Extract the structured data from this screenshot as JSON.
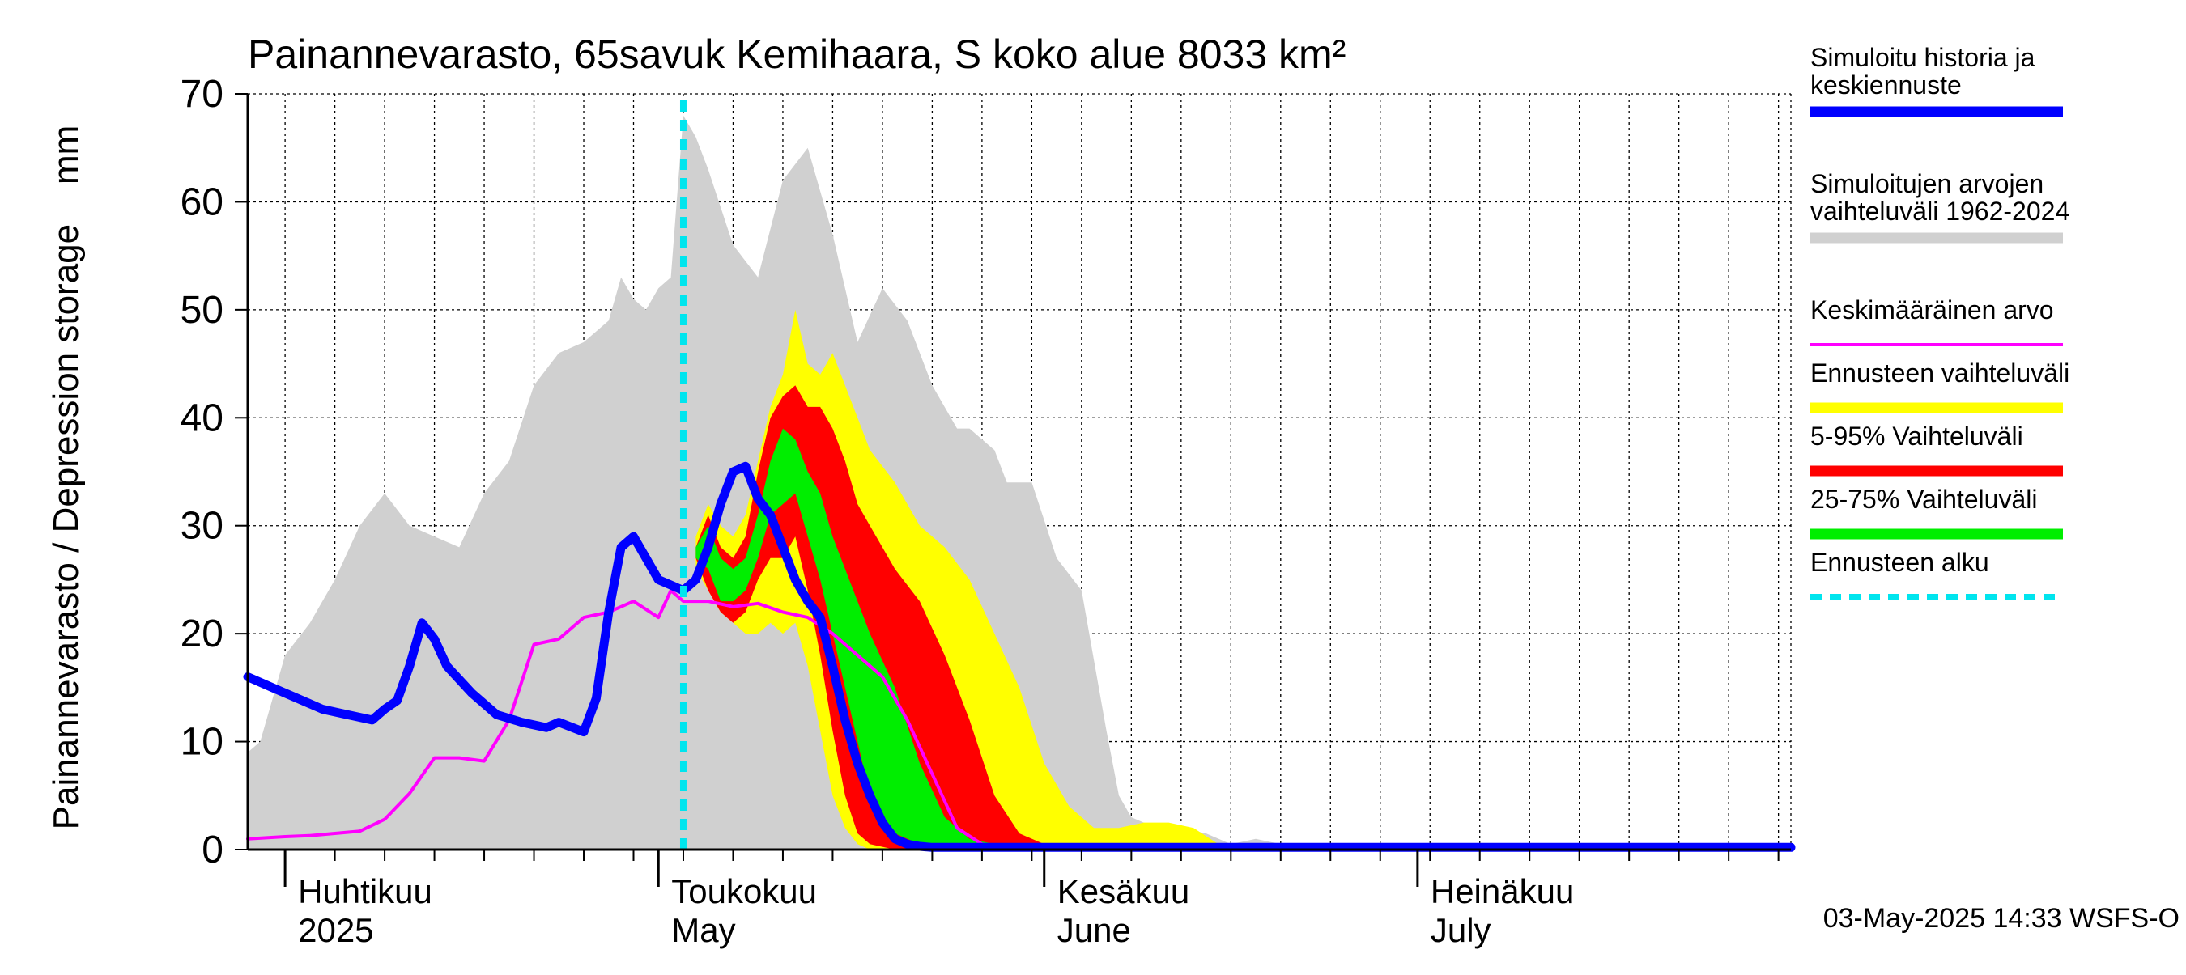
{
  "chart_data": {
    "type": "area",
    "title": "Painannevarasto, 65savuk Kemihaara, S koko alue 8033 km²",
    "ylabel": "Painannevarasto / Depression storage    mm",
    "ylim": [
      0,
      70
    ],
    "yticks": [
      "0",
      "10",
      "20",
      "30",
      "40",
      "50",
      "60",
      "70"
    ],
    "xlim": [
      "2025-03-29",
      "2025-07-31"
    ],
    "x_month_labels": [
      {
        "date": "2025-04-01",
        "fi": "Huhtikuu",
        "en": "2025"
      },
      {
        "date": "2025-05-01",
        "fi": "Toukokuu",
        "en": "May"
      },
      {
        "date": "2025-06-01",
        "fi": "Kesäkuu",
        "en": "June"
      },
      {
        "date": "2025-07-01",
        "fi": "Heinäkuu",
        "en": "July"
      }
    ],
    "forecast_start": "2025-05-03",
    "grid": true,
    "legend_position": "right",
    "timestamp": "03-May-2025 14:33 WSFS-O",
    "series": [
      {
        "name": "Simuloitujen arvojen vaihteluväli 1962-2024",
        "kind": "band",
        "color": "#d0d0d0",
        "x": [
          "2025-03-29",
          "2025-03-30",
          "2025-04-01",
          "2025-04-03",
          "2025-04-05",
          "2025-04-07",
          "2025-04-09",
          "2025-04-11",
          "2025-04-13",
          "2025-04-15",
          "2025-04-17",
          "2025-04-19",
          "2025-04-21",
          "2025-04-23",
          "2025-04-25",
          "2025-04-27",
          "2025-04-28",
          "2025-04-29",
          "2025-04-30",
          "2025-05-01",
          "2025-05-02",
          "2025-05-03",
          "2025-05-04",
          "2025-05-05",
          "2025-05-07",
          "2025-05-09",
          "2025-05-11",
          "2025-05-13",
          "2025-05-15",
          "2025-05-17",
          "2025-05-19",
          "2025-05-21",
          "2025-05-23",
          "2025-05-25",
          "2025-05-26",
          "2025-05-27",
          "2025-05-28",
          "2025-05-29",
          "2025-05-31",
          "2025-06-02",
          "2025-06-04",
          "2025-06-06",
          "2025-06-07",
          "2025-06-08",
          "2025-06-10",
          "2025-06-12",
          "2025-06-14",
          "2025-06-16",
          "2025-06-18",
          "2025-06-20",
          "2025-06-22",
          "2025-06-24",
          "2025-07-31"
        ],
        "high": [
          9,
          10,
          18,
          21,
          25,
          30,
          33,
          30,
          29,
          28,
          33,
          36,
          43,
          46,
          47,
          49,
          53,
          51,
          50,
          52,
          53,
          68,
          66,
          63,
          56,
          53,
          62,
          65,
          57,
          47,
          52,
          49,
          43,
          39,
          39,
          38,
          37,
          34,
          34,
          27,
          24,
          11,
          5,
          3,
          2,
          2,
          1.5,
          0.5,
          1,
          0.5,
          0.4,
          0.3,
          0.2
        ],
        "low": [
          0,
          0,
          0,
          0,
          0,
          0,
          0,
          0,
          0,
          0,
          0,
          0,
          0,
          0,
          0,
          0,
          0,
          0,
          0,
          0,
          0,
          0,
          0,
          0,
          0,
          0,
          0,
          0,
          0,
          0,
          0,
          0,
          0,
          0,
          0,
          0,
          0,
          0,
          0,
          0,
          0,
          0,
          0,
          0,
          0,
          0,
          0,
          0,
          0,
          0,
          0,
          0,
          0
        ]
      },
      {
        "name": "Ennusteen vaihteluväli",
        "kind": "band",
        "color": "#ffff00",
        "x": [
          "2025-05-04",
          "2025-05-05",
          "2025-05-06",
          "2025-05-07",
          "2025-05-08",
          "2025-05-09",
          "2025-05-10",
          "2025-05-11",
          "2025-05-12",
          "2025-05-13",
          "2025-05-14",
          "2025-05-15",
          "2025-05-16",
          "2025-05-17",
          "2025-05-18",
          "2025-05-20",
          "2025-05-22",
          "2025-05-24",
          "2025-05-26",
          "2025-05-28",
          "2025-05-30",
          "2025-06-01",
          "2025-06-03",
          "2025-06-05",
          "2025-06-07",
          "2025-06-09",
          "2025-06-11",
          "2025-06-13",
          "2025-06-15",
          "2025-07-31"
        ],
        "high": [
          29,
          32,
          30,
          29,
          31,
          36,
          41,
          44,
          50,
          45,
          44,
          46,
          43,
          40,
          37,
          34,
          30,
          28,
          25,
          20,
          15,
          8,
          4,
          2,
          2,
          2.5,
          2.5,
          2,
          0.5,
          0.2
        ],
        "low": [
          26,
          24,
          22,
          21,
          20,
          20,
          21,
          20,
          21,
          17,
          11,
          5,
          2,
          0.5,
          0,
          0,
          0,
          0,
          0,
          0,
          0,
          0,
          0,
          0,
          0,
          0,
          0,
          0,
          0,
          0
        ]
      },
      {
        "name": "5-95% Vaihteluväli",
        "kind": "band",
        "color": "#ff0000",
        "x": [
          "2025-05-04",
          "2025-05-05",
          "2025-05-06",
          "2025-05-07",
          "2025-05-08",
          "2025-05-09",
          "2025-05-10",
          "2025-05-11",
          "2025-05-12",
          "2025-05-13",
          "2025-05-14",
          "2025-05-15",
          "2025-05-16",
          "2025-05-17",
          "2025-05-18",
          "2025-05-20",
          "2025-05-22",
          "2025-05-24",
          "2025-05-26",
          "2025-05-28",
          "2025-05-30",
          "2025-06-01",
          "2025-06-03",
          "2025-06-05",
          "2025-06-07",
          "2025-07-31"
        ],
        "high": [
          28,
          31,
          28,
          27,
          29,
          35,
          40,
          42,
          43,
          41,
          41,
          39,
          36,
          32,
          30,
          26,
          23,
          18,
          12,
          5,
          1.5,
          0.5,
          0.3,
          0.2,
          0.2,
          0.2
        ],
        "low": [
          27,
          24,
          22,
          21,
          22,
          25,
          27,
          27,
          29,
          24,
          18,
          11,
          5,
          1.5,
          0.5,
          0,
          0,
          0,
          0,
          0,
          0,
          0,
          0,
          0,
          0,
          0
        ]
      },
      {
        "name": "25-75% Vaihteluväli",
        "kind": "band",
        "color": "#00ee00",
        "x": [
          "2025-05-04",
          "2025-05-05",
          "2025-05-06",
          "2025-05-07",
          "2025-05-08",
          "2025-05-09",
          "2025-05-10",
          "2025-05-11",
          "2025-05-12",
          "2025-05-13",
          "2025-05-14",
          "2025-05-15",
          "2025-05-16",
          "2025-05-17",
          "2025-05-18",
          "2025-05-20",
          "2025-05-22",
          "2025-05-24",
          "2025-05-26",
          "2025-05-28",
          "2025-05-30",
          "2025-07-31"
        ],
        "high": [
          28,
          30,
          27,
          26,
          27,
          31,
          36,
          39,
          38,
          35,
          33,
          29,
          26,
          23,
          20,
          15,
          8,
          3,
          1,
          0.5,
          0.3,
          0.2
        ],
        "low": [
          27,
          26,
          23,
          23,
          24,
          27,
          31,
          32,
          33,
          29,
          25,
          20,
          15,
          10,
          5,
          1.5,
          0.5,
          0.2,
          0,
          0,
          0,
          0
        ]
      },
      {
        "name": "Keskimääräinen arvo",
        "kind": "line",
        "color": "#ff00ff",
        "x": [
          "2025-03-29",
          "2025-04-01",
          "2025-04-03",
          "2025-04-05",
          "2025-04-07",
          "2025-04-09",
          "2025-04-11",
          "2025-04-13",
          "2025-04-15",
          "2025-04-17",
          "2025-04-19",
          "2025-04-21",
          "2025-04-23",
          "2025-04-25",
          "2025-04-27",
          "2025-04-29",
          "2025-05-01",
          "2025-05-02",
          "2025-05-03",
          "2025-05-05",
          "2025-05-07",
          "2025-05-09",
          "2025-05-11",
          "2025-05-13",
          "2025-05-15",
          "2025-05-17",
          "2025-05-19",
          "2025-05-21",
          "2025-05-23",
          "2025-05-25",
          "2025-05-27",
          "2025-05-29",
          "2025-05-31",
          "2025-07-31"
        ],
        "values": [
          1,
          1.2,
          1.3,
          1.5,
          1.7,
          2.8,
          5.2,
          8.5,
          8.5,
          8.2,
          12,
          19,
          19.5,
          21.5,
          22,
          23,
          21.5,
          24,
          23,
          23,
          22.5,
          22.8,
          22,
          21.5,
          20,
          18,
          16,
          12,
          7,
          2,
          0.5,
          0.2,
          0.1,
          0.1
        ]
      },
      {
        "name": "Simuloitu historia ja keskiennuste",
        "kind": "line",
        "color": "#0000ff",
        "x": [
          "2025-03-29",
          "2025-03-31",
          "2025-04-02",
          "2025-04-04",
          "2025-04-06",
          "2025-04-08",
          "2025-04-09",
          "2025-04-10",
          "2025-04-11",
          "2025-04-12",
          "2025-04-13",
          "2025-04-14",
          "2025-04-16",
          "2025-04-18",
          "2025-04-20",
          "2025-04-22",
          "2025-04-23",
          "2025-04-25",
          "2025-04-26",
          "2025-04-27",
          "2025-04-28",
          "2025-04-29",
          "2025-04-30",
          "2025-05-01",
          "2025-05-02",
          "2025-05-03",
          "2025-05-04",
          "2025-05-05",
          "2025-05-06",
          "2025-05-07",
          "2025-05-08",
          "2025-05-09",
          "2025-05-10",
          "2025-05-11",
          "2025-05-12",
          "2025-05-13",
          "2025-05-14",
          "2025-05-15",
          "2025-05-16",
          "2025-05-17",
          "2025-05-18",
          "2025-05-19",
          "2025-05-20",
          "2025-05-21",
          "2025-05-22",
          "2025-05-23",
          "2025-05-24",
          "2025-05-25",
          "2025-05-27",
          "2025-05-29",
          "2025-05-31",
          "2025-07-31"
        ],
        "values": [
          16,
          15,
          14,
          13,
          12.5,
          12,
          13,
          13.8,
          17,
          21,
          19.5,
          17,
          14.5,
          12.5,
          11.8,
          11.3,
          11.8,
          10.9,
          14,
          22,
          28,
          29,
          27,
          25,
          24.5,
          24,
          25,
          28,
          32,
          35,
          35.5,
          32.5,
          31,
          28,
          25,
          23,
          21.5,
          17,
          12,
          8,
          5,
          2.5,
          1,
          0.5,
          0.3,
          0.2,
          0.2,
          0.2,
          0.2,
          0.2,
          0.2,
          0.2
        ]
      }
    ],
    "legend": [
      {
        "line1": "Simuloitu historia ja",
        "line2": "keskiennuste",
        "color": "#0000ff",
        "style": "thick"
      },
      {
        "line1": "Simuloitujen arvojen",
        "line2": "vaihteluväli 1962-2024",
        "color": "#d0d0d0",
        "style": "thick"
      },
      {
        "line1": "Keskimääräinen arvo",
        "line2": "",
        "color": "#ff00ff",
        "style": "thin"
      },
      {
        "line1": "Ennusteen vaihteluväli",
        "line2": "",
        "color": "#ffff00",
        "style": "thick"
      },
      {
        "line1": "5-95% Vaihteluväli",
        "line2": "",
        "color": "#ff0000",
        "style": "thick"
      },
      {
        "line1": "25-75% Vaihteluväli",
        "line2": "",
        "color": "#00ee00",
        "style": "thick"
      },
      {
        "line1": "Ennusteen alku",
        "line2": "",
        "color": "#00e5ee",
        "style": "dashed"
      }
    ]
  }
}
